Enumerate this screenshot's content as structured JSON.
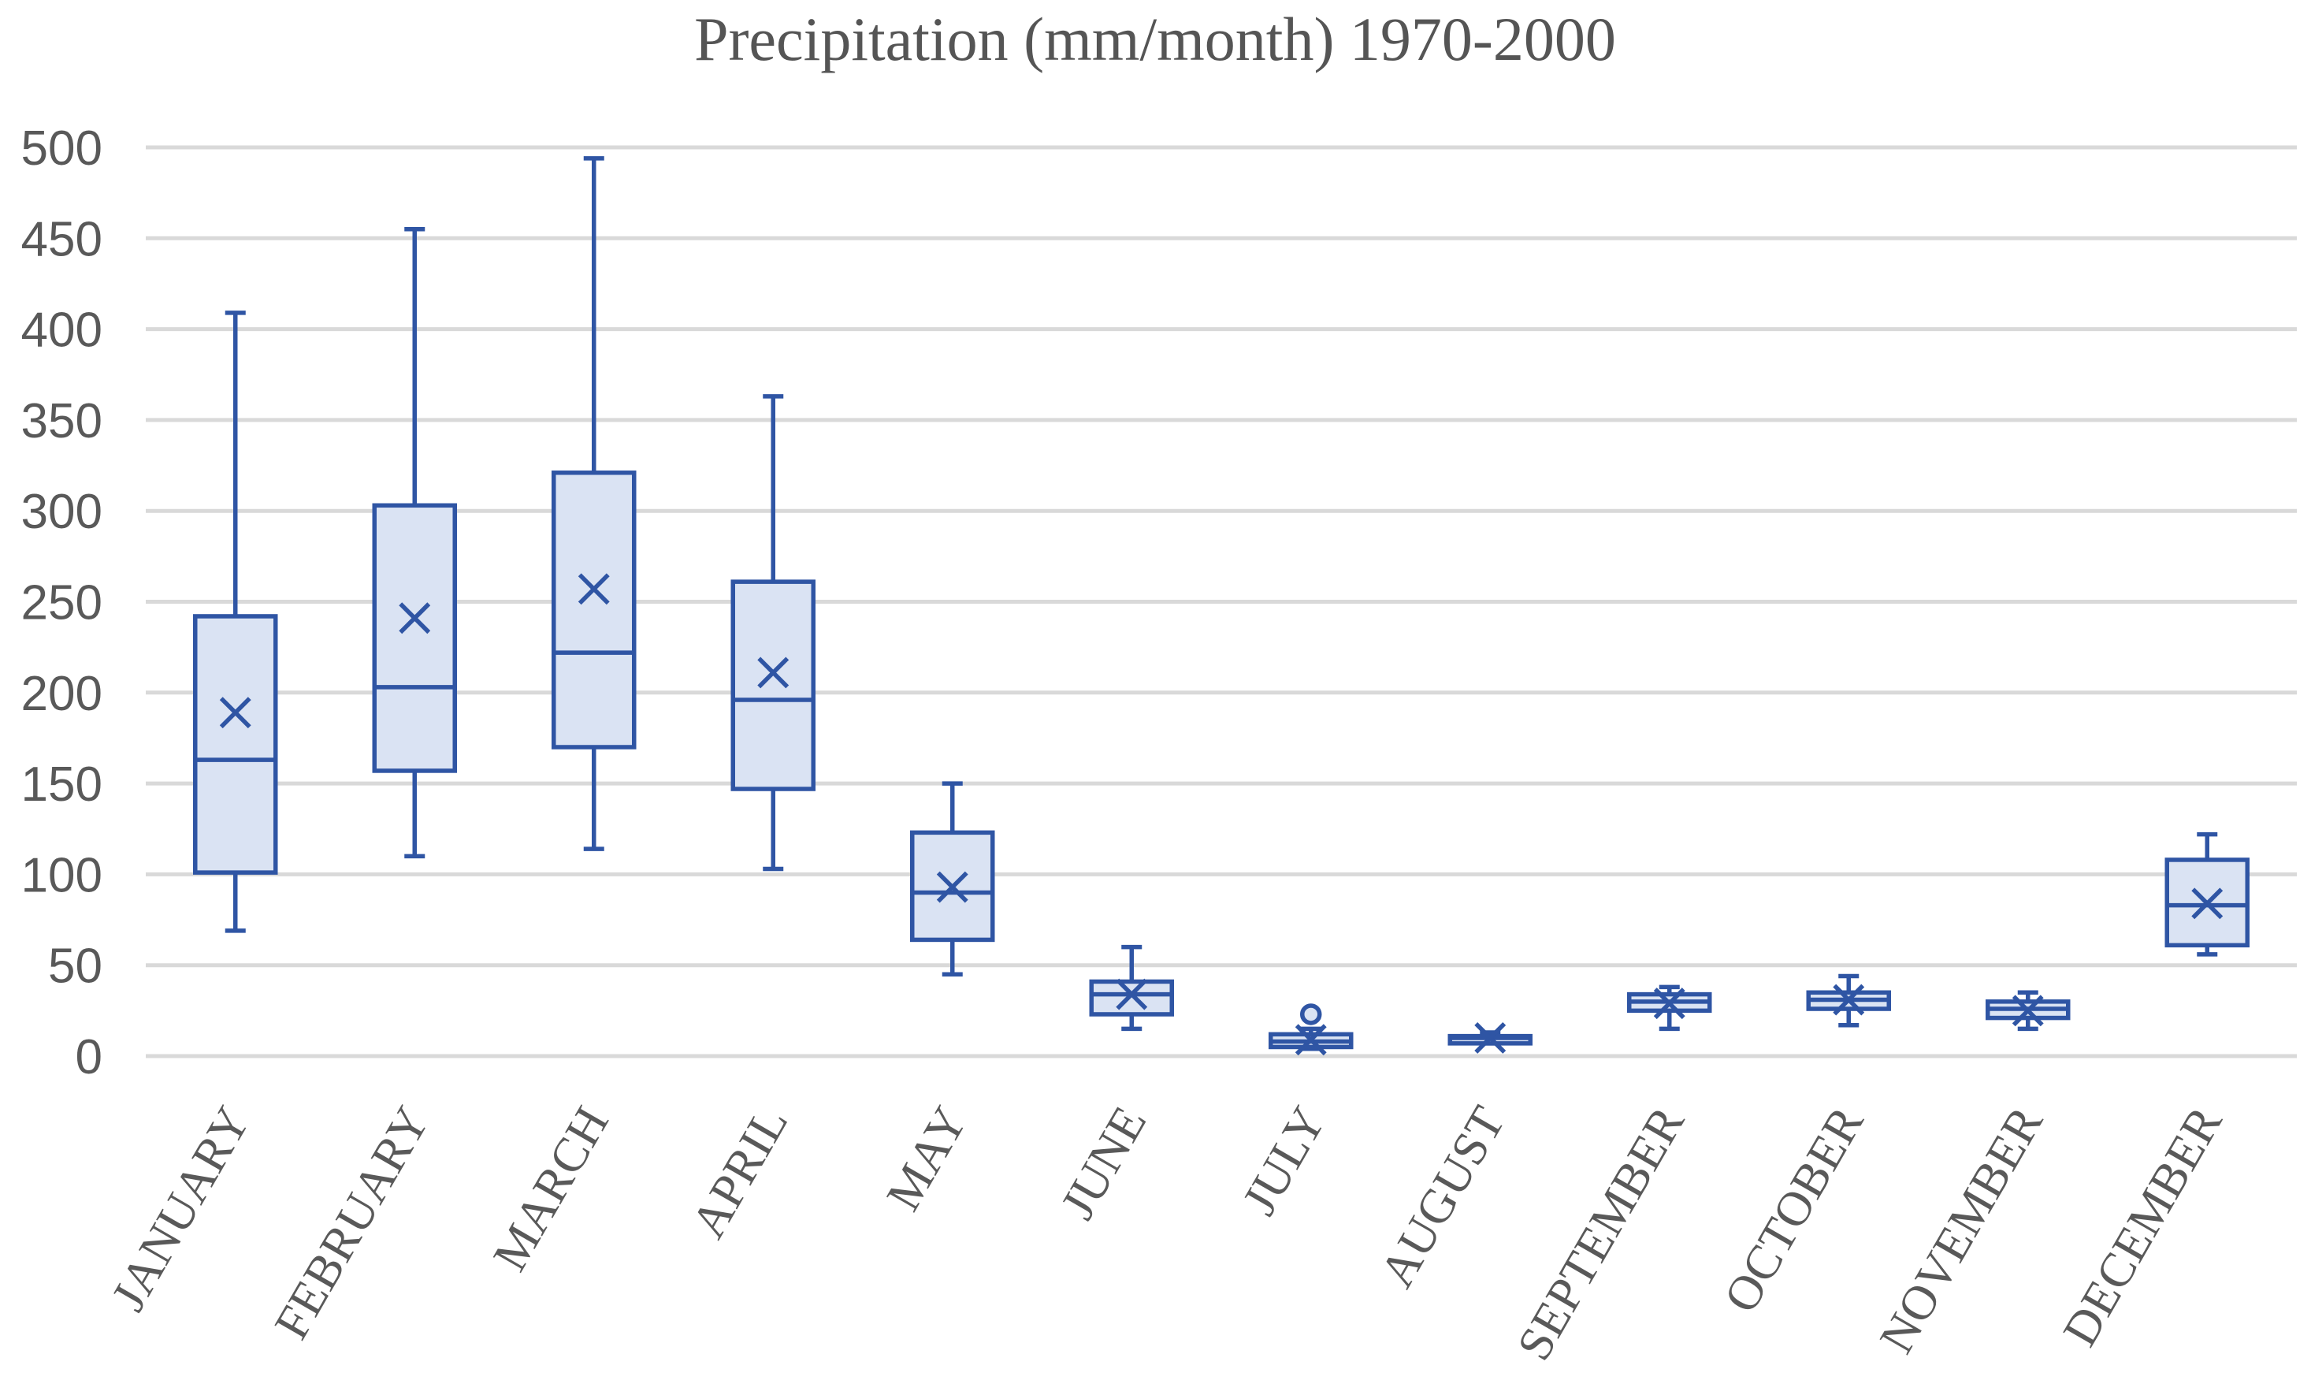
{
  "chart_data": {
    "type": "boxplot",
    "title": "Precipitation (mm/month)  1970-2000",
    "xlabel": "",
    "ylabel": "",
    "ylim": [
      0,
      500
    ],
    "yticks": [
      0,
      50,
      100,
      150,
      200,
      250,
      300,
      350,
      400,
      450,
      500
    ],
    "grid": true,
    "legend": "none",
    "categories": [
      "JANUARY",
      "FEBRUARY",
      "MARCH",
      "APRIL",
      "MAY",
      "JUNE",
      "JULY",
      "AUGUST",
      "SEPTEMBER",
      "OCTOBER",
      "NOVEMBER",
      "DECEMBER"
    ],
    "boxes": [
      {
        "min": 69,
        "q1": 101,
        "median": 163,
        "q3": 242,
        "max": 409,
        "mean": 189,
        "outliers": []
      },
      {
        "min": 110,
        "q1": 157,
        "median": 203,
        "q3": 303,
        "max": 455,
        "mean": 241,
        "outliers": []
      },
      {
        "min": 114,
        "q1": 170,
        "median": 222,
        "q3": 321,
        "max": 494,
        "mean": 257,
        "outliers": []
      },
      {
        "min": 103,
        "q1": 147,
        "median": 196,
        "q3": 261,
        "max": 363,
        "mean": 211,
        "outliers": []
      },
      {
        "min": 45,
        "q1": 64,
        "median": 90,
        "q3": 123,
        "max": 150,
        "mean": 93,
        "outliers": []
      },
      {
        "min": 15,
        "q1": 23,
        "median": 34,
        "q3": 41,
        "max": 60,
        "mean": 34,
        "outliers": []
      },
      {
        "min": 4,
        "q1": 5,
        "median": 8,
        "q3": 12,
        "max": 15,
        "mean": 9,
        "outliers": [
          23
        ]
      },
      {
        "min": 7,
        "q1": 7,
        "median": 10,
        "q3": 11,
        "max": 13,
        "mean": 10,
        "outliers": []
      },
      {
        "min": 15,
        "q1": 25,
        "median": 30,
        "q3": 34,
        "max": 38,
        "mean": 29,
        "outliers": []
      },
      {
        "min": 17,
        "q1": 26,
        "median": 31,
        "q3": 35,
        "max": 44,
        "mean": 31,
        "outliers": []
      },
      {
        "min": 15,
        "q1": 21,
        "median": 26,
        "q3": 30,
        "max": 35,
        "mean": 25,
        "outliers": []
      },
      {
        "min": 56,
        "q1": 61,
        "median": 83,
        "q3": 108,
        "max": 122,
        "mean": 84,
        "outliers": []
      }
    ],
    "colors": {
      "box_fill": "#dae3f3",
      "box_stroke": "#2f55a4",
      "grid": "#d9d9d9",
      "text": "#595959"
    }
  }
}
